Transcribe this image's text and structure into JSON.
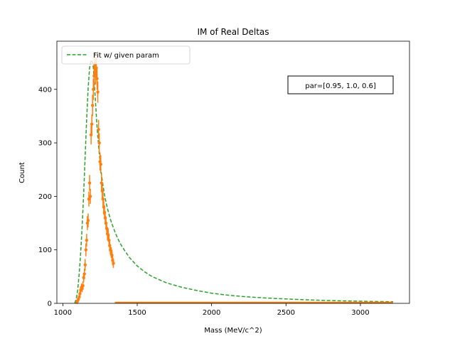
{
  "chart_data": {
    "type": "scatter",
    "title": "IM of Real Deltas",
    "xlabel": "Mass (MeV/c^2)",
    "ylabel": "Count",
    "xlim": [
      960,
      3330
    ],
    "ylim": [
      0,
      490
    ],
    "xticks": [
      1000,
      1500,
      2000,
      2500,
      3000
    ],
    "yticks": [
      0,
      100,
      200,
      300,
      400
    ],
    "grid": false,
    "legend": {
      "placement": "top-left",
      "entries": [
        "Fit w/ given param"
      ]
    },
    "annotation": "par=[0.95, 1.0, 0.6]",
    "colors": {
      "fit": "#2ca02c",
      "data": "#ff7f0e"
    },
    "fit_curve": {
      "name": "Fit w/ given param",
      "style": "dashed",
      "x": [
        1080,
        1090,
        1100,
        1110,
        1120,
        1130,
        1140,
        1150,
        1160,
        1170,
        1180,
        1190,
        1200,
        1205,
        1210,
        1220,
        1230,
        1240,
        1250,
        1260,
        1270,
        1280,
        1290,
        1300,
        1320,
        1340,
        1360,
        1380,
        1400,
        1450,
        1500,
        1550,
        1600,
        1700,
        1800,
        1900,
        2000,
        2100,
        2200,
        2300,
        2400,
        2500,
        2600,
        2700,
        2800,
        2900,
        3000,
        3100,
        3220
      ],
      "y": [
        0,
        8,
        25,
        55,
        95,
        145,
        205,
        275,
        345,
        400,
        440,
        455,
        450,
        440,
        420,
        375,
        330,
        295,
        265,
        240,
        220,
        203,
        189,
        177,
        157,
        141,
        127,
        115,
        105,
        85,
        70,
        59,
        50,
        38,
        30,
        24,
        19,
        15.5,
        13,
        11,
        9.5,
        8.2,
        7,
        6,
        5.2,
        4.5,
        4,
        3.4,
        3
      ]
    },
    "data_points": {
      "name": "",
      "x": [
        1095,
        1100,
        1105,
        1110,
        1115,
        1120,
        1125,
        1130,
        1135,
        1140,
        1145,
        1150,
        1155,
        1160,
        1165,
        1170,
        1175,
        1180,
        1185,
        1190,
        1195,
        1200,
        1205,
        1210,
        1215,
        1220,
        1225,
        1230,
        1235,
        1240,
        1245,
        1250,
        1255,
        1260,
        1265,
        1270,
        1275,
        1280,
        1285,
        1290,
        1295,
        1300,
        1305,
        1310,
        1315,
        1320,
        1325,
        1330,
        1335,
        1340
      ],
      "y": [
        2,
        5,
        8,
        12,
        18,
        25,
        30,
        28,
        33,
        48,
        55,
        72,
        100,
        118,
        150,
        155,
        195,
        225,
        200,
        315,
        335,
        370,
        400,
        425,
        445,
        430,
        440,
        420,
        395,
        325,
        300,
        265,
        260,
        225,
        210,
        195,
        180,
        170,
        160,
        150,
        140,
        130,
        128,
        118,
        108,
        100,
        95,
        90,
        80,
        75
      ],
      "yerr": [
        2,
        3,
        4,
        5,
        6,
        6,
        7,
        7,
        8,
        9,
        10,
        11,
        12,
        12,
        13,
        13,
        14,
        15,
        14,
        18,
        18,
        20,
        20,
        21,
        22,
        21,
        22,
        21,
        20,
        18,
        18,
        17,
        17,
        16,
        15,
        15,
        14,
        13,
        13,
        12,
        12,
        12,
        12,
        11,
        11,
        10,
        10,
        10,
        9,
        9
      ],
      "tail_x_range": [
        1350,
        3220
      ],
      "tail_y": 0
    }
  }
}
